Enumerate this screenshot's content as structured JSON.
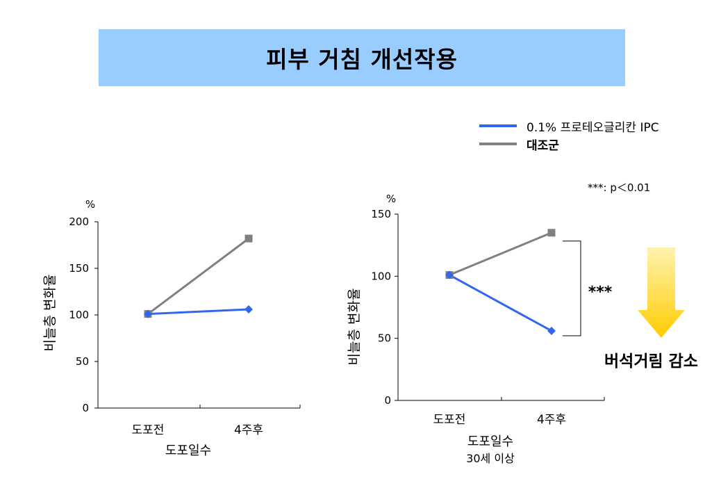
{
  "title": "피부 거침 개선작용",
  "legend": {
    "items": [
      {
        "label": "0.1% 프로테오글리칸 IPC",
        "color": "#3366ee",
        "bold": false
      },
      {
        "label": "대조군",
        "color": "#808080",
        "bold": true
      }
    ]
  },
  "significance_note": "***: p＜0.01",
  "reduction_label": "버석거림 감소",
  "colors": {
    "banner": "#99ccff",
    "treatment": "#3366ee",
    "control": "#808080",
    "arrow_top": "#fff3b0",
    "arrow_bottom": "#ffcc00"
  },
  "chart_data": [
    {
      "type": "line",
      "categories": [
        "도포전",
        "4주후"
      ],
      "unit": "%",
      "ylabel": "비늘층 변화율",
      "xlabel": "도포일수",
      "xlabel_sub": "",
      "ylim": [
        0,
        200
      ],
      "yticks": [
        "0",
        "50",
        "100",
        "150",
        "200"
      ],
      "series": [
        {
          "name": "대조군",
          "values": [
            101,
            182
          ],
          "marker": "square",
          "color": "#808080"
        },
        {
          "name": "0.1% 프로테오글리칸 IPC",
          "values": [
            101,
            106
          ],
          "marker": "diamond",
          "color": "#3366ee"
        }
      ],
      "annotation": ""
    },
    {
      "type": "line",
      "categories": [
        "도포전",
        "4주후"
      ],
      "unit": "%",
      "ylabel": "비늘층 변화율",
      "xlabel": "도포일수",
      "xlabel_sub": "30세 이상",
      "ylim": [
        0,
        150
      ],
      "yticks": [
        "0",
        "50",
        "100",
        "150"
      ],
      "series": [
        {
          "name": "대조군",
          "values": [
            101,
            135
          ],
          "marker": "square",
          "color": "#808080"
        },
        {
          "name": "0.1% 프로테오글리칸 IPC",
          "values": [
            101,
            56
          ],
          "marker": "diamond",
          "color": "#3366ee"
        }
      ],
      "annotation": "***"
    }
  ]
}
